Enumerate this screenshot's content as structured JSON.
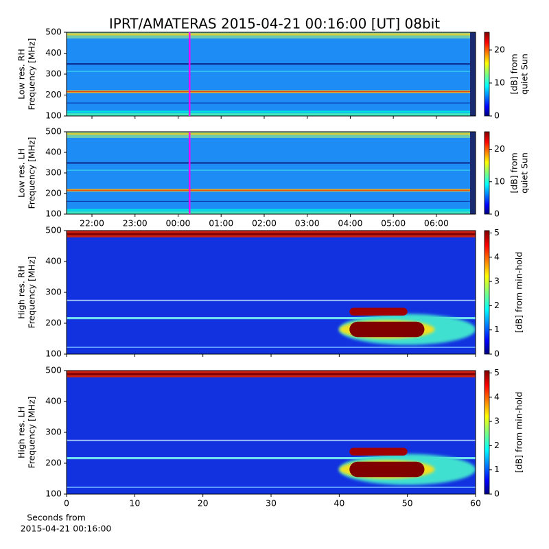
{
  "chart_data": [
    {
      "type": "heatmap",
      "title": "IPRT/AMATERAS 2015-04-21 00:16:00 [UT]   08bit",
      "ylabel": [
        "Low res. RH",
        "Frequency [MHz]"
      ],
      "xlim": [
        21.41,
        30.91
      ],
      "xticks": [
        22,
        23,
        24,
        25,
        26,
        27,
        28,
        29,
        30
      ],
      "show_xticklabels": false,
      "ylim": [
        100,
        500
      ],
      "yticks": [
        100,
        200,
        300,
        400,
        500
      ],
      "marker_line": {
        "x": 24.267,
        "color": "#ff00ff"
      },
      "colorbar": {
        "label": [
          "[dB] from",
          "quiet Sun"
        ],
        "clim": [
          0,
          25.4
        ],
        "ticks": [
          0,
          10,
          20
        ],
        "colormap": "jet"
      }
    },
    {
      "type": "heatmap",
      "ylabel": [
        "Low res. LH",
        "Frequency [MHz]"
      ],
      "xlim": [
        21.41,
        30.91
      ],
      "xticks": [
        {
          "value": 22,
          "label": "22:00"
        },
        {
          "value": 23,
          "label": "23:00"
        },
        {
          "value": 24,
          "label": "00:00"
        },
        {
          "value": 25,
          "label": "01:00"
        },
        {
          "value": 26,
          "label": "02:00"
        },
        {
          "value": 27,
          "label": "03:00"
        },
        {
          "value": 28,
          "label": "04:00"
        },
        {
          "value": 29,
          "label": "05:00"
        },
        {
          "value": 30,
          "label": "06:00"
        }
      ],
      "show_xticklabels": true,
      "ylim": [
        100,
        500
      ],
      "yticks": [
        100,
        200,
        300,
        400,
        500
      ],
      "marker_line": {
        "x": 24.267,
        "color": "#ff00ff"
      },
      "colorbar": {
        "label": [
          "[dB] from",
          "quiet Sun"
        ],
        "clim": [
          0,
          25.4
        ],
        "ticks": [
          0,
          10,
          20
        ],
        "colormap": "jet"
      }
    },
    {
      "type": "heatmap",
      "ylabel": [
        "High res. RH",
        "Frequency [MHz]"
      ],
      "xlim": [
        0,
        60
      ],
      "xticks": [
        0,
        10,
        20,
        30,
        40,
        50,
        60
      ],
      "show_xticklabels": false,
      "ylim": [
        100,
        500
      ],
      "yticks": [
        100,
        200,
        300,
        400,
        500
      ],
      "colorbar": {
        "label": [
          "[dB] from min-hold"
        ],
        "clim": [
          0,
          5.1
        ],
        "ticks": [
          0,
          1,
          2,
          3,
          4,
          5
        ],
        "colormap": "jet"
      }
    },
    {
      "type": "heatmap",
      "ylabel": [
        "High res. LH",
        "Frequency [MHz]"
      ],
      "xlim": [
        0,
        60
      ],
      "xticks": [
        0,
        10,
        20,
        30,
        40,
        50,
        60
      ],
      "show_xticklabels": true,
      "xlabel": [
        "Seconds from",
        "2015-04-21 00:16:00"
      ],
      "ylim": [
        100,
        500
      ],
      "yticks": [
        100,
        200,
        300,
        400,
        500
      ],
      "colorbar": {
        "label": [
          "[dB] from min-hold"
        ],
        "clim": [
          0,
          5.1
        ],
        "ticks": [
          0,
          1,
          2,
          3,
          4,
          5
        ],
        "colormap": "jet"
      }
    }
  ]
}
